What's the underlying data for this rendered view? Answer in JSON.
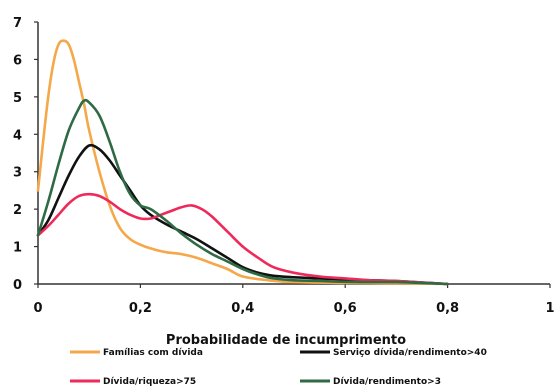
{
  "chart_data": {
    "type": "line",
    "title": "",
    "xlabel": "Probabilidade de incumprimento",
    "ylabel": "",
    "xlim": [
      0,
      1
    ],
    "ylim": [
      0,
      7
    ],
    "xticks": [
      "0",
      "0,2",
      "0,4",
      "0,6",
      "0,8",
      "1"
    ],
    "yticks": [
      "0",
      "1",
      "2",
      "3",
      "4",
      "5",
      "6",
      "7"
    ],
    "grid": false,
    "legend_position": "bottom",
    "series": [
      {
        "name": "Famílias com dívida",
        "color": "#f5a84a",
        "points": [
          [
            0,
            2.5
          ],
          [
            0.01,
            3.8
          ],
          [
            0.02,
            5.0
          ],
          [
            0.03,
            5.9
          ],
          [
            0.04,
            6.4
          ],
          [
            0.05,
            6.5
          ],
          [
            0.06,
            6.4
          ],
          [
            0.07,
            6.0
          ],
          [
            0.08,
            5.4
          ],
          [
            0.09,
            4.8
          ],
          [
            0.1,
            4.1
          ],
          [
            0.12,
            3.0
          ],
          [
            0.14,
            2.1
          ],
          [
            0.16,
            1.5
          ],
          [
            0.18,
            1.2
          ],
          [
            0.2,
            1.05
          ],
          [
            0.22,
            0.95
          ],
          [
            0.25,
            0.85
          ],
          [
            0.28,
            0.8
          ],
          [
            0.31,
            0.7
          ],
          [
            0.34,
            0.55
          ],
          [
            0.37,
            0.4
          ],
          [
            0.4,
            0.2
          ],
          [
            0.45,
            0.1
          ],
          [
            0.5,
            0.05
          ],
          [
            0.6,
            0.03
          ],
          [
            0.7,
            0.02
          ],
          [
            0.8,
            0.0
          ]
        ]
      },
      {
        "name": "Serviço dívida/rendimento>40",
        "color": "#111111",
        "points": [
          [
            0,
            1.3
          ],
          [
            0.02,
            1.7
          ],
          [
            0.04,
            2.3
          ],
          [
            0.06,
            2.9
          ],
          [
            0.08,
            3.4
          ],
          [
            0.1,
            3.7
          ],
          [
            0.12,
            3.6
          ],
          [
            0.14,
            3.3
          ],
          [
            0.16,
            2.9
          ],
          [
            0.18,
            2.5
          ],
          [
            0.2,
            2.1
          ],
          [
            0.22,
            1.85
          ],
          [
            0.25,
            1.6
          ],
          [
            0.28,
            1.4
          ],
          [
            0.31,
            1.2
          ],
          [
            0.34,
            0.95
          ],
          [
            0.37,
            0.7
          ],
          [
            0.4,
            0.45
          ],
          [
            0.43,
            0.3
          ],
          [
            0.46,
            0.22
          ],
          [
            0.5,
            0.18
          ],
          [
            0.55,
            0.15
          ],
          [
            0.6,
            0.12
          ],
          [
            0.65,
            0.1
          ],
          [
            0.7,
            0.08
          ],
          [
            0.75,
            0.04
          ],
          [
            0.8,
            0.0
          ]
        ]
      },
      {
        "name": "Dívida/riqueza>75",
        "color": "#ee2a5a",
        "points": [
          [
            0,
            1.3
          ],
          [
            0.02,
            1.55
          ],
          [
            0.04,
            1.85
          ],
          [
            0.06,
            2.15
          ],
          [
            0.08,
            2.35
          ],
          [
            0.1,
            2.4
          ],
          [
            0.12,
            2.35
          ],
          [
            0.14,
            2.2
          ],
          [
            0.16,
            2.0
          ],
          [
            0.18,
            1.85
          ],
          [
            0.2,
            1.75
          ],
          [
            0.22,
            1.75
          ],
          [
            0.24,
            1.85
          ],
          [
            0.26,
            1.95
          ],
          [
            0.28,
            2.05
          ],
          [
            0.3,
            2.1
          ],
          [
            0.32,
            2.0
          ],
          [
            0.34,
            1.8
          ],
          [
            0.37,
            1.4
          ],
          [
            0.4,
            1.0
          ],
          [
            0.43,
            0.7
          ],
          [
            0.46,
            0.45
          ],
          [
            0.5,
            0.3
          ],
          [
            0.55,
            0.2
          ],
          [
            0.6,
            0.15
          ],
          [
            0.65,
            0.1
          ],
          [
            0.7,
            0.08
          ],
          [
            0.75,
            0.04
          ],
          [
            0.8,
            0.0
          ]
        ]
      },
      {
        "name": "Dívida/rendimento>3",
        "color": "#2e6b45",
        "points": [
          [
            0,
            1.3
          ],
          [
            0.02,
            2.2
          ],
          [
            0.04,
            3.2
          ],
          [
            0.06,
            4.1
          ],
          [
            0.08,
            4.7
          ],
          [
            0.09,
            4.9
          ],
          [
            0.1,
            4.85
          ],
          [
            0.12,
            4.5
          ],
          [
            0.14,
            3.8
          ],
          [
            0.16,
            3.0
          ],
          [
            0.18,
            2.4
          ],
          [
            0.2,
            2.1
          ],
          [
            0.22,
            2.0
          ],
          [
            0.25,
            1.7
          ],
          [
            0.28,
            1.35
          ],
          [
            0.31,
            1.05
          ],
          [
            0.34,
            0.8
          ],
          [
            0.37,
            0.6
          ],
          [
            0.4,
            0.4
          ],
          [
            0.43,
            0.25
          ],
          [
            0.46,
            0.15
          ],
          [
            0.5,
            0.1
          ],
          [
            0.55,
            0.08
          ],
          [
            0.6,
            0.06
          ],
          [
            0.65,
            0.05
          ],
          [
            0.7,
            0.05
          ],
          [
            0.75,
            0.03
          ],
          [
            0.8,
            0.0
          ]
        ]
      }
    ]
  }
}
